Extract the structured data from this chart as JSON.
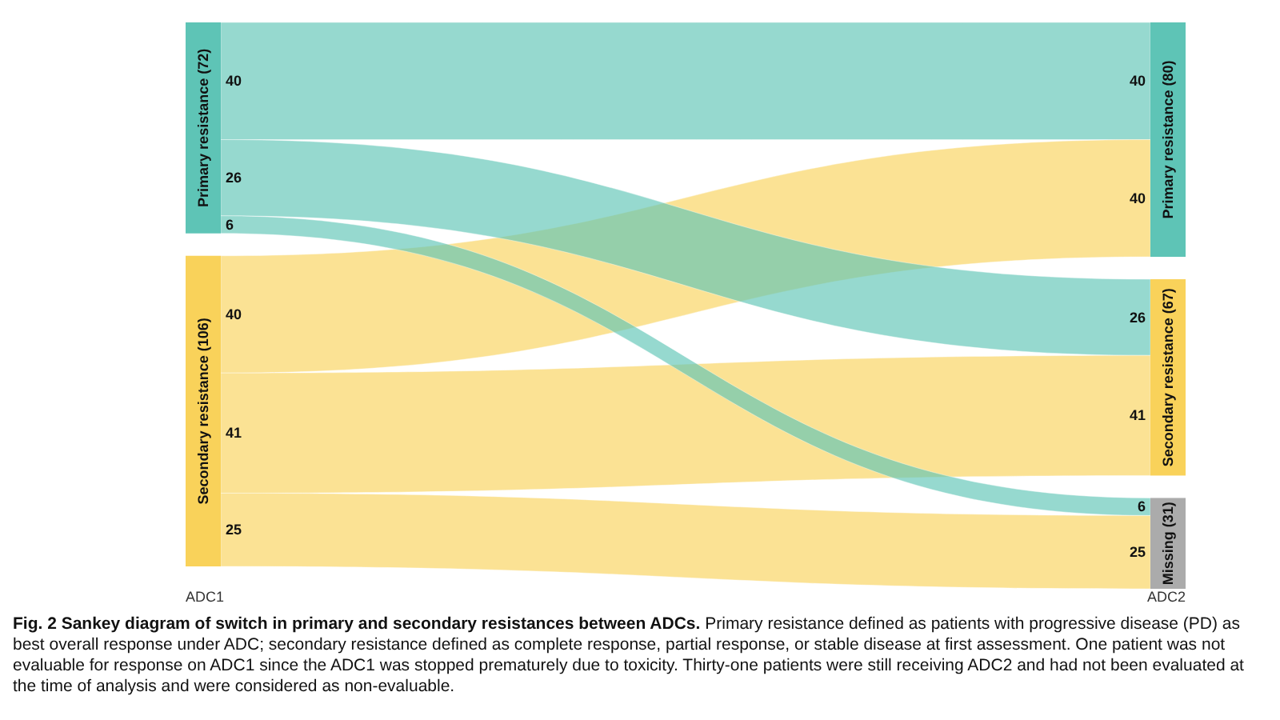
{
  "chart_data": {
    "type": "other",
    "title": "Fig. 2  Sankey diagram of switch in primary and secondary resistances between ADCs.",
    "subtitle": "Primary resistance defined as patients with progressive disease (PD) as best overall response under ADC; secondary resistance defined as complete response, partial response, or stable disease at first assessment. One patient was not evaluable for response on ADC1 since the ADC1 was stopped prematurely due to toxicity. Thirty-one patients were still receiving ADC2 and had not been evaluated at the time of analysis and were considered as non-evaluable.",
    "xlabel": "ADC1",
    "x2label": "ADC2",
    "categories": [
      "Primary resistance (72)",
      "Secondary resistance (106)"
    ],
    "colors": [
      "#5ec4b6",
      "#f9d25a"
    ],
    "series": [
      {
        "name": "Primary resistance (80)",
        "color": "#5ec4b6",
        "colors": [
          "#5ec4b6",
          "#f9d25a"
        ],
        "values": [
          40,
          40
        ]
      },
      {
        "name": "Secondary resistance (67)",
        "color": "#f9d25a",
        "colors": [
          "#5ec4b6",
          "#f9d25a"
        ],
        "values": [
          26,
          41
        ]
      },
      {
        "name": "Missing (31)",
        "color": "#ababab",
        "colors": [
          "#5ec4b6",
          "#f9d25a"
        ],
        "values": [
          6,
          25
        ]
      }
    ],
    "data_labels": true,
    "annotations": [
      "40",
      "40",
      "26",
      "41",
      "6",
      "25"
    ]
  }
}
